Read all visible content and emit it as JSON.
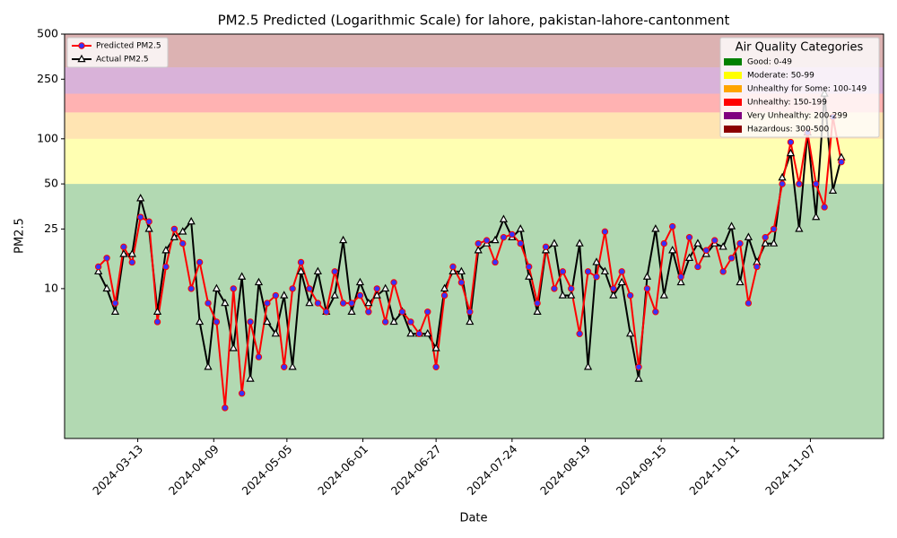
{
  "chart_data": {
    "type": "line",
    "title": "PM2.5 Predicted (Logarithmic Scale) for lahore, pakistan-lahore-cantonment",
    "x_label": "Date",
    "y_label": "PM2.5",
    "log_scale": true,
    "xlim": [
      "2024-02-16",
      "2024-12-03"
    ],
    "xticks": [
      "2024-03-13",
      "2024-04-09",
      "2024-05-05",
      "2024-06-01",
      "2024-06-27",
      "2024-07-24",
      "2024-08-19",
      "2024-09-15",
      "2024-10-11",
      "2024-11-07"
    ],
    "ylim": [
      1,
      500
    ],
    "yticks": [
      10,
      25,
      50,
      100,
      250,
      500
    ],
    "legend_loc": "upper left",
    "bands_legend_loc": "upper right",
    "bands_title": "Air Quality Categories",
    "bands": [
      {
        "label": "Good: 0-49",
        "low": 0,
        "high": 50,
        "color": "#008000"
      },
      {
        "label": "Moderate: 50-99",
        "low": 50,
        "high": 100,
        "color": "#ffff00"
      },
      {
        "label": "Unhealthy for Some: 100-149",
        "low": 100,
        "high": 150,
        "color": "#ffa500"
      },
      {
        "label": "Unhealthy: 150-199",
        "low": 150,
        "high": 200,
        "color": "#ff0000"
      },
      {
        "label": "Very Unhealthy: 200-299",
        "low": 200,
        "high": 300,
        "color": "#800080"
      },
      {
        "label": "Hazardous: 300-500",
        "low": 300,
        "high": 500,
        "color": "#8b0000"
      }
    ],
    "x": [
      "2024-02-28",
      "2024-03-02",
      "2024-03-05",
      "2024-03-08",
      "2024-03-11",
      "2024-03-14",
      "2024-03-17",
      "2024-03-20",
      "2024-03-23",
      "2024-03-26",
      "2024-03-29",
      "2024-04-01",
      "2024-04-04",
      "2024-04-07",
      "2024-04-10",
      "2024-04-13",
      "2024-04-16",
      "2024-04-19",
      "2024-04-22",
      "2024-04-25",
      "2024-04-28",
      "2024-05-01",
      "2024-05-04",
      "2024-05-07",
      "2024-05-10",
      "2024-05-13",
      "2024-05-16",
      "2024-05-19",
      "2024-05-22",
      "2024-05-25",
      "2024-05-28",
      "2024-05-31",
      "2024-06-03",
      "2024-06-06",
      "2024-06-09",
      "2024-06-12",
      "2024-06-15",
      "2024-06-18",
      "2024-06-21",
      "2024-06-24",
      "2024-06-27",
      "2024-06-30",
      "2024-07-03",
      "2024-07-06",
      "2024-07-09",
      "2024-07-12",
      "2024-07-15",
      "2024-07-18",
      "2024-07-21",
      "2024-07-24",
      "2024-07-27",
      "2024-07-30",
      "2024-08-02",
      "2024-08-05",
      "2024-08-08",
      "2024-08-11",
      "2024-08-14",
      "2024-08-17",
      "2024-08-20",
      "2024-08-23",
      "2024-08-26",
      "2024-08-29",
      "2024-09-01",
      "2024-09-04",
      "2024-09-07",
      "2024-09-10",
      "2024-09-13",
      "2024-09-16",
      "2024-09-19",
      "2024-09-22",
      "2024-09-25",
      "2024-09-28",
      "2024-10-01",
      "2024-10-04",
      "2024-10-07",
      "2024-10-10",
      "2024-10-13",
      "2024-10-16",
      "2024-10-19",
      "2024-10-22",
      "2024-10-25",
      "2024-10-28",
      "2024-10-31",
      "2024-11-03",
      "2024-11-06",
      "2024-11-09",
      "2024-11-12",
      "2024-11-15",
      "2024-11-18"
    ],
    "series": [
      {
        "name": "Predicted PM2.5",
        "color": "#ff0000",
        "marker": "circle",
        "marker_color": "#3333ff",
        "values": [
          14,
          16,
          8,
          19,
          15,
          30,
          28,
          6,
          14,
          25,
          20,
          10,
          15,
          8,
          6,
          1.6,
          10,
          2,
          6,
          3.5,
          8,
          9,
          3,
          10,
          15,
          10,
          8,
          7,
          13,
          8,
          8,
          9,
          7,
          10,
          6,
          11,
          7,
          6,
          5,
          7,
          3,
          9,
          14,
          11,
          7,
          20,
          21,
          15,
          22,
          23,
          20,
          14,
          8,
          19,
          10,
          13,
          10,
          5,
          13,
          12,
          24,
          10,
          13,
          9,
          3,
          10,
          7,
          20,
          26,
          12,
          22,
          14,
          18,
          21,
          13,
          16,
          20,
          8,
          14,
          22,
          25,
          50,
          95,
          50,
          110,
          50,
          35,
          140,
          70
        ]
      },
      {
        "name": "Actual PM2.5",
        "color": "#000000",
        "marker": "triangle",
        "marker_color": "#ffffff",
        "values": [
          13,
          10,
          7,
          17,
          17,
          40,
          25,
          7,
          18,
          22,
          24,
          28,
          6,
          3,
          10,
          8,
          4,
          12,
          2.5,
          11,
          6,
          5,
          9,
          3,
          13,
          8,
          13,
          7,
          9,
          21,
          7,
          11,
          8,
          9,
          10,
          6,
          7,
          5,
          5,
          5,
          4,
          10,
          13,
          13,
          6,
          18,
          20,
          21,
          29,
          22,
          25,
          12,
          7,
          18,
          20,
          9,
          9,
          20,
          3,
          15,
          13,
          9,
          11,
          5,
          2.5,
          12,
          25,
          9,
          18,
          11,
          16,
          20,
          17,
          20,
          19,
          26,
          11,
          22,
          15,
          20,
          20,
          55,
          80,
          25,
          110,
          30,
          200,
          45,
          75
        ]
      }
    ]
  }
}
